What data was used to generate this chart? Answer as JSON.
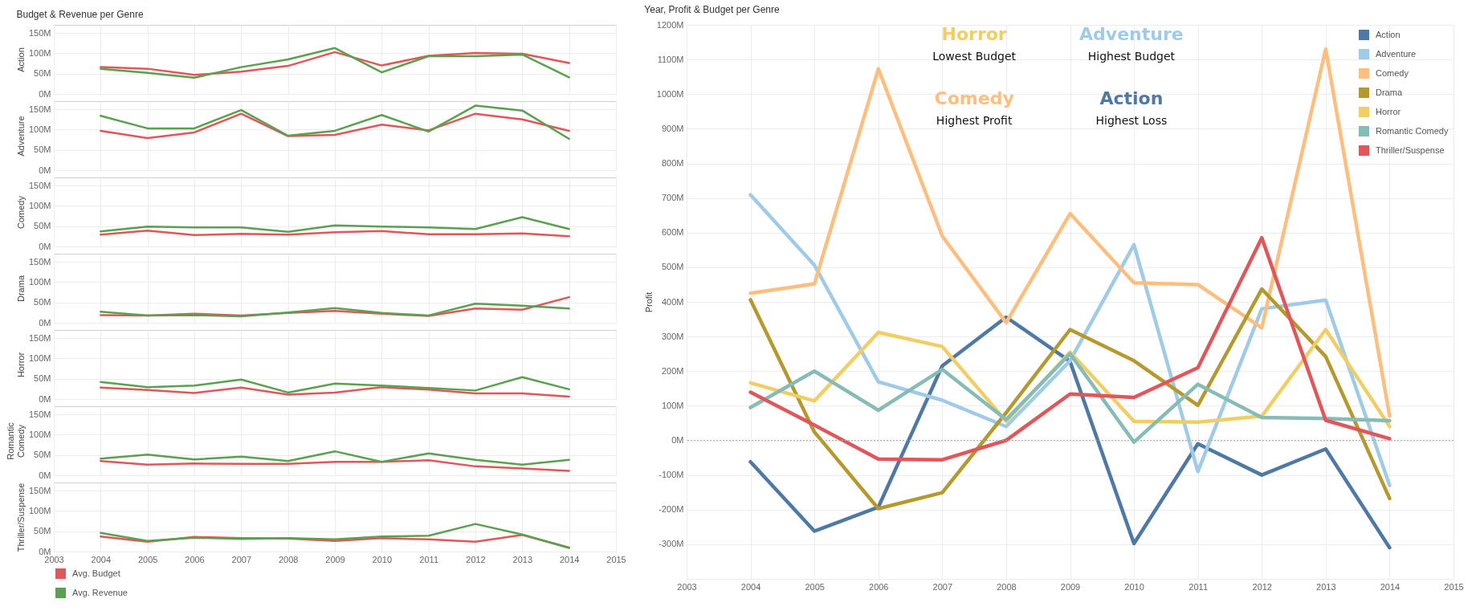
{
  "chart_data": [
    {
      "type": "line",
      "title": "Budget & Revenue per Genre",
      "ylabel": "Action",
      "x": [
        2004,
        2005,
        2006,
        2007,
        2008,
        2009,
        2010,
        2011,
        2012,
        2013,
        2014
      ],
      "xlim": [
        2003,
        2015
      ],
      "xticks": [
        2003,
        2004,
        2005,
        2006,
        2007,
        2008,
        2009,
        2010,
        2011,
        2012,
        2013,
        2014,
        2015
      ],
      "ylim": [
        0,
        170
      ],
      "yticks": [
        {
          "value": 0,
          "label": "0M"
        },
        {
          "value": 50,
          "label": "50M"
        },
        {
          "value": 100,
          "label": "100M"
        },
        {
          "value": 150,
          "label": "150M"
        }
      ],
      "grid": true,
      "tick_labels": "y",
      "series": [
        {
          "color": "#e15759",
          "values": [
            66,
            62,
            47,
            55,
            69,
            103,
            70,
            94,
            101,
            99,
            76
          ]
        },
        {
          "color": "#59a14f",
          "values": [
            62,
            52,
            40,
            66,
            85,
            113,
            53,
            93,
            93,
            97,
            41
          ]
        }
      ]
    },
    {
      "type": "line",
      "ylabel": "Adventure",
      "x": [
        2004,
        2005,
        2006,
        2007,
        2008,
        2009,
        2010,
        2011,
        2012,
        2013,
        2014
      ],
      "xlim": [
        2003,
        2015
      ],
      "xticks": [
        2003,
        2004,
        2005,
        2006,
        2007,
        2008,
        2009,
        2010,
        2011,
        2012,
        2013,
        2014,
        2015
      ],
      "ylim": [
        0,
        170
      ],
      "yticks": [
        {
          "value": 0,
          "label": "0M"
        },
        {
          "value": 50,
          "label": "50M"
        },
        {
          "value": 100,
          "label": "100M"
        },
        {
          "value": 150,
          "label": "150M"
        }
      ],
      "grid": true,
      "tick_labels": "y",
      "series": [
        {
          "color": "#e15759",
          "values": [
            97,
            79,
            93,
            139,
            84,
            87,
            112,
            98,
            139,
            125,
            97
          ]
        },
        {
          "color": "#59a14f",
          "values": [
            134,
            103,
            103,
            148,
            85,
            97,
            136,
            95,
            159,
            147,
            77
          ]
        }
      ]
    },
    {
      "type": "line",
      "ylabel": "Comedy",
      "x": [
        2004,
        2005,
        2006,
        2007,
        2008,
        2009,
        2010,
        2011,
        2012,
        2013,
        2014
      ],
      "xlim": [
        2003,
        2015
      ],
      "xticks": [
        2003,
        2004,
        2005,
        2006,
        2007,
        2008,
        2009,
        2010,
        2011,
        2012,
        2013,
        2014,
        2015
      ],
      "ylim": [
        0,
        170
      ],
      "yticks": [
        {
          "value": 0,
          "label": "0M"
        },
        {
          "value": 50,
          "label": "50M"
        },
        {
          "value": 100,
          "label": "100M"
        },
        {
          "value": 150,
          "label": "150M"
        }
      ],
      "grid": true,
      "tick_labels": "y",
      "series": [
        {
          "color": "#e15759",
          "values": [
            29,
            39,
            28,
            31,
            29,
            35,
            38,
            30,
            30,
            32,
            25
          ]
        },
        {
          "color": "#59a14f",
          "values": [
            37,
            49,
            47,
            47,
            36,
            52,
            49,
            47,
            43,
            72,
            43
          ]
        }
      ]
    },
    {
      "type": "line",
      "ylabel": "Drama",
      "x": [
        2004,
        2005,
        2006,
        2007,
        2008,
        2009,
        2010,
        2011,
        2012,
        2013,
        2014
      ],
      "xlim": [
        2003,
        2015
      ],
      "xticks": [
        2003,
        2004,
        2005,
        2006,
        2007,
        2008,
        2009,
        2010,
        2011,
        2012,
        2013,
        2014,
        2015
      ],
      "ylim": [
        0,
        170
      ],
      "yticks": [
        {
          "value": 0,
          "label": "0M"
        },
        {
          "value": 50,
          "label": "50M"
        },
        {
          "value": 100,
          "label": "100M"
        },
        {
          "value": 150,
          "label": "150M"
        }
      ],
      "grid": true,
      "tick_labels": "y",
      "series": [
        {
          "color": "#e15759",
          "values": [
            19,
            18,
            22,
            18,
            24,
            29,
            22,
            17,
            35,
            32,
            63
          ]
        },
        {
          "color": "#59a14f",
          "values": [
            27,
            18,
            19,
            16,
            25,
            36,
            24,
            18,
            47,
            42,
            35
          ]
        }
      ]
    },
    {
      "type": "line",
      "ylabel": "Horror",
      "x": [
        2004,
        2005,
        2006,
        2007,
        2008,
        2009,
        2010,
        2011,
        2012,
        2013,
        2014
      ],
      "xlim": [
        2003,
        2015
      ],
      "xticks": [
        2003,
        2004,
        2005,
        2006,
        2007,
        2008,
        2009,
        2010,
        2011,
        2012,
        2013,
        2014,
        2015
      ],
      "ylim": [
        0,
        170
      ],
      "yticks": [
        {
          "value": 0,
          "label": "0M"
        },
        {
          "value": 50,
          "label": "50M"
        },
        {
          "value": 100,
          "label": "100M"
        },
        {
          "value": 150,
          "label": "150M"
        }
      ],
      "grid": true,
      "tick_labels": "y",
      "series": [
        {
          "color": "#e15759",
          "values": [
            28,
            22,
            15,
            28,
            11,
            16,
            29,
            23,
            14,
            14,
            6
          ]
        },
        {
          "color": "#59a14f",
          "values": [
            42,
            29,
            33,
            48,
            16,
            38,
            33,
            27,
            21,
            54,
            24
          ]
        }
      ]
    },
    {
      "type": "line",
      "ylabel": "Romantic Comedy",
      "x": [
        2004,
        2005,
        2006,
        2007,
        2008,
        2009,
        2010,
        2011,
        2012,
        2013,
        2014
      ],
      "xlim": [
        2003,
        2015
      ],
      "xticks": [
        2003,
        2004,
        2005,
        2006,
        2007,
        2008,
        2009,
        2010,
        2011,
        2012,
        2013,
        2014,
        2015
      ],
      "ylim": [
        0,
        170
      ],
      "yticks": [
        {
          "value": 0,
          "label": "0M"
        },
        {
          "value": 50,
          "label": "50M"
        },
        {
          "value": 100,
          "label": "100M"
        },
        {
          "value": 150,
          "label": "150M"
        }
      ],
      "grid": true,
      "tick_labels": "y",
      "series": [
        {
          "color": "#e15759",
          "values": [
            35,
            26,
            29,
            28,
            28,
            33,
            33,
            37,
            22,
            17,
            11
          ]
        },
        {
          "color": "#59a14f",
          "values": [
            41,
            51,
            39,
            46,
            35,
            59,
            33,
            54,
            38,
            26,
            38
          ]
        }
      ]
    },
    {
      "type": "line",
      "ylabel": "Thriller/Suspense",
      "x": [
        2004,
        2005,
        2006,
        2007,
        2008,
        2009,
        2010,
        2011,
        2012,
        2013,
        2014
      ],
      "xlim": [
        2003,
        2015
      ],
      "xticks": [
        2003,
        2004,
        2005,
        2006,
        2007,
        2008,
        2009,
        2010,
        2011,
        2012,
        2013,
        2014,
        2015
      ],
      "ylim": [
        0,
        170
      ],
      "yticks": [
        {
          "value": 0,
          "label": "0M"
        },
        {
          "value": 50,
          "label": "50M"
        },
        {
          "value": 100,
          "label": "100M"
        },
        {
          "value": 150,
          "label": "150M"
        }
      ],
      "grid": true,
      "legend": "bottom left",
      "series": [
        {
          "name": "Avg. Budget",
          "color": "#e15759",
          "values": [
            37,
            24,
            36,
            33,
            32,
            26,
            33,
            30,
            24,
            41,
            10
          ]
        },
        {
          "name": "Avg. Revenue",
          "color": "#59a14f",
          "values": [
            46,
            26,
            34,
            31,
            33,
            30,
            37,
            39,
            68,
            42,
            9
          ]
        }
      ]
    },
    {
      "type": "line",
      "title": "Year, Profit & Budget per Genre",
      "ylabel": "Profit",
      "x": [
        2004,
        2005,
        2006,
        2007,
        2008,
        2009,
        2010,
        2011,
        2012,
        2013,
        2014
      ],
      "xlim": [
        2003,
        2015
      ],
      "xticks": [
        2003,
        2004,
        2005,
        2006,
        2007,
        2008,
        2009,
        2010,
        2011,
        2012,
        2013,
        2014,
        2015
      ],
      "ylim": [
        -400,
        1200
      ],
      "yticks": [
        {
          "value": -400,
          "label": null
        },
        {
          "value": -300,
          "label": "-300M"
        },
        {
          "value": -200,
          "label": "-200M"
        },
        {
          "value": -100,
          "label": "-100M"
        },
        {
          "value": 0,
          "label": "0M"
        },
        {
          "value": 100,
          "label": "100M"
        },
        {
          "value": 200,
          "label": "200M"
        },
        {
          "value": 300,
          "label": "300M"
        },
        {
          "value": 400,
          "label": "400M"
        },
        {
          "value": 500,
          "label": "500M"
        },
        {
          "value": 600,
          "label": "600M"
        },
        {
          "value": 700,
          "label": "700M"
        },
        {
          "value": 800,
          "label": "800M"
        },
        {
          "value": 900,
          "label": "900M"
        },
        {
          "value": 1000,
          "label": "1000M"
        },
        {
          "value": 1100,
          "label": "1100M"
        },
        {
          "value": 1200,
          "label": "1200M"
        }
      ],
      "grid": true,
      "legend": "top right",
      "ref_lines": [
        {
          "axis": "y",
          "value": 0,
          "color": "#aaaaaa",
          "line_style": "dotted"
        }
      ],
      "annotations": [
        "Horror",
        "Lowest Budget",
        "Adventure",
        "Highest Budget",
        "Comedy",
        "Highest Profit",
        "Action",
        "Highest Loss"
      ],
      "series": [
        {
          "name": "Action",
          "color": "#4e79a7",
          "values": [
            -62,
            -262,
            -193,
            215,
            356,
            228,
            -298,
            -10,
            -100,
            -25,
            -310
          ]
        },
        {
          "name": "Adventure",
          "color": "#a0cbe8",
          "values": [
            709,
            506,
            169,
            116,
            40,
            230,
            565,
            -90,
            380,
            405,
            -130
          ]
        },
        {
          "name": "Comedy",
          "color": "#ffbe7d",
          "values": [
            425,
            452,
            1073,
            590,
            340,
            655,
            455,
            450,
            325,
            1130,
            70
          ]
        },
        {
          "name": "Drama",
          "color": "#b6992d",
          "values": [
            406,
            24,
            -197,
            -151,
            80,
            320,
            230,
            101,
            437,
            242,
            -168
          ]
        },
        {
          "name": "Horror",
          "color": "#f1ce63",
          "values": [
            166,
            114,
            312,
            271,
            55,
            255,
            55,
            53,
            70,
            320,
            40
          ]
        },
        {
          "name": "Romantic Comedy",
          "color": "#86bcb6",
          "values": [
            95,
            200,
            87,
            205,
            60,
            250,
            -5,
            162,
            66,
            63,
            57
          ]
        },
        {
          "name": "Thriller/Suspense",
          "color": "#e15759",
          "values": [
            139,
            44,
            -54,
            -56,
            0,
            134,
            124,
            210,
            585,
            58,
            5
          ]
        }
      ]
    }
  ]
}
